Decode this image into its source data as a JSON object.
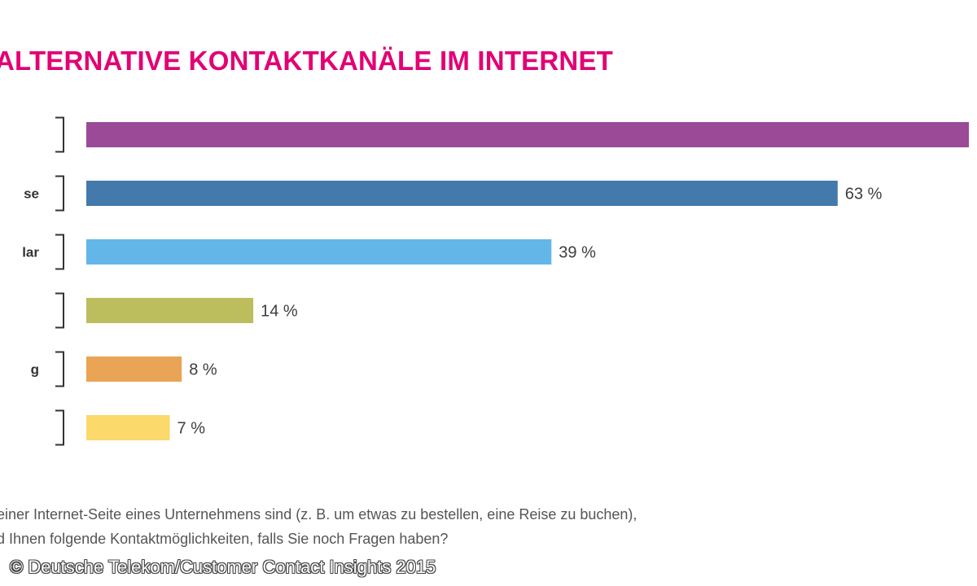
{
  "page": {
    "title": "ALTERNATIVE KONTAKTKANÄLE IM INTERNET",
    "question_line1": "einer Internet-Seite eines Unternehmens sind (z. B. um etwas zu bestellen, eine Reise zu buchen),",
    "question_line2": "d Ihnen folgende Kontaktmöglichkeiten, falls Sie noch Fragen haben?",
    "copyright": "© Deutsche Telekom/Customer Contact Insights 2015"
  },
  "chart_data": {
    "type": "bar",
    "orientation": "horizontal",
    "title": "ALTERNATIVE KONTAKTKANÄLE IM INTERNET",
    "xlabel": "",
    "ylabel": "",
    "xlim": [
      0,
      74
    ],
    "grid": false,
    "unit": "%",
    "categories": [
      "",
      "se",
      "lar",
      "",
      "g",
      ""
    ],
    "values": [
      74,
      63,
      39,
      14,
      8,
      7
    ],
    "value_labels": [
      "",
      "63 %",
      "39 %",
      "14 %",
      "8 %",
      "7 %"
    ],
    "colors": [
      "#9a4a96",
      "#4479ac",
      "#63b7e8",
      "#bcbd5c",
      "#e9a455",
      "#fbd96a"
    ]
  }
}
